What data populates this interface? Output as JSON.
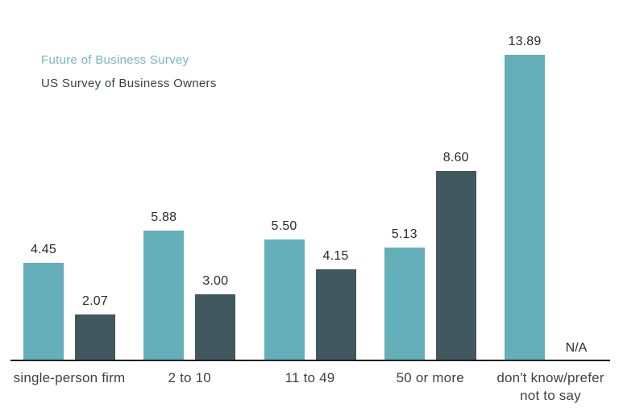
{
  "legend": {
    "series1_label": "Future of Business Survey",
    "series2_label": "US Survey of Business Owners"
  },
  "colors": {
    "series1_bar": "#64afba",
    "series2_bar": "#41585f",
    "series1_legend_text": "#74b7c0",
    "series2_legend_text": "#3a4045",
    "axis": "#1f1f1f",
    "value_text": "#2b2b2b",
    "category_text": "#414141"
  },
  "chart_data": {
    "type": "bar",
    "categories": [
      "single-person firm",
      "2 to 10",
      "11 to 49",
      "50 or more",
      "don't know/prefer\nnot to say"
    ],
    "series": [
      {
        "name": "Future of Business Survey",
        "values": [
          4.45,
          5.88,
          5.5,
          5.13,
          13.89
        ],
        "labels": [
          "4.45",
          "5.88",
          "5.50",
          "5.13",
          "13.89"
        ]
      },
      {
        "name": "US Survey of Business Owners",
        "values": [
          2.07,
          3.0,
          4.15,
          8.6,
          null
        ],
        "labels": [
          "2.07",
          "3.00",
          "4.15",
          "8.60",
          "N/A"
        ]
      }
    ],
    "na_label": "N/A",
    "ylim": [
      0,
      14.5
    ],
    "grid": false,
    "legend_position": "top-left",
    "title": "",
    "xlabel": "",
    "ylabel": ""
  }
}
